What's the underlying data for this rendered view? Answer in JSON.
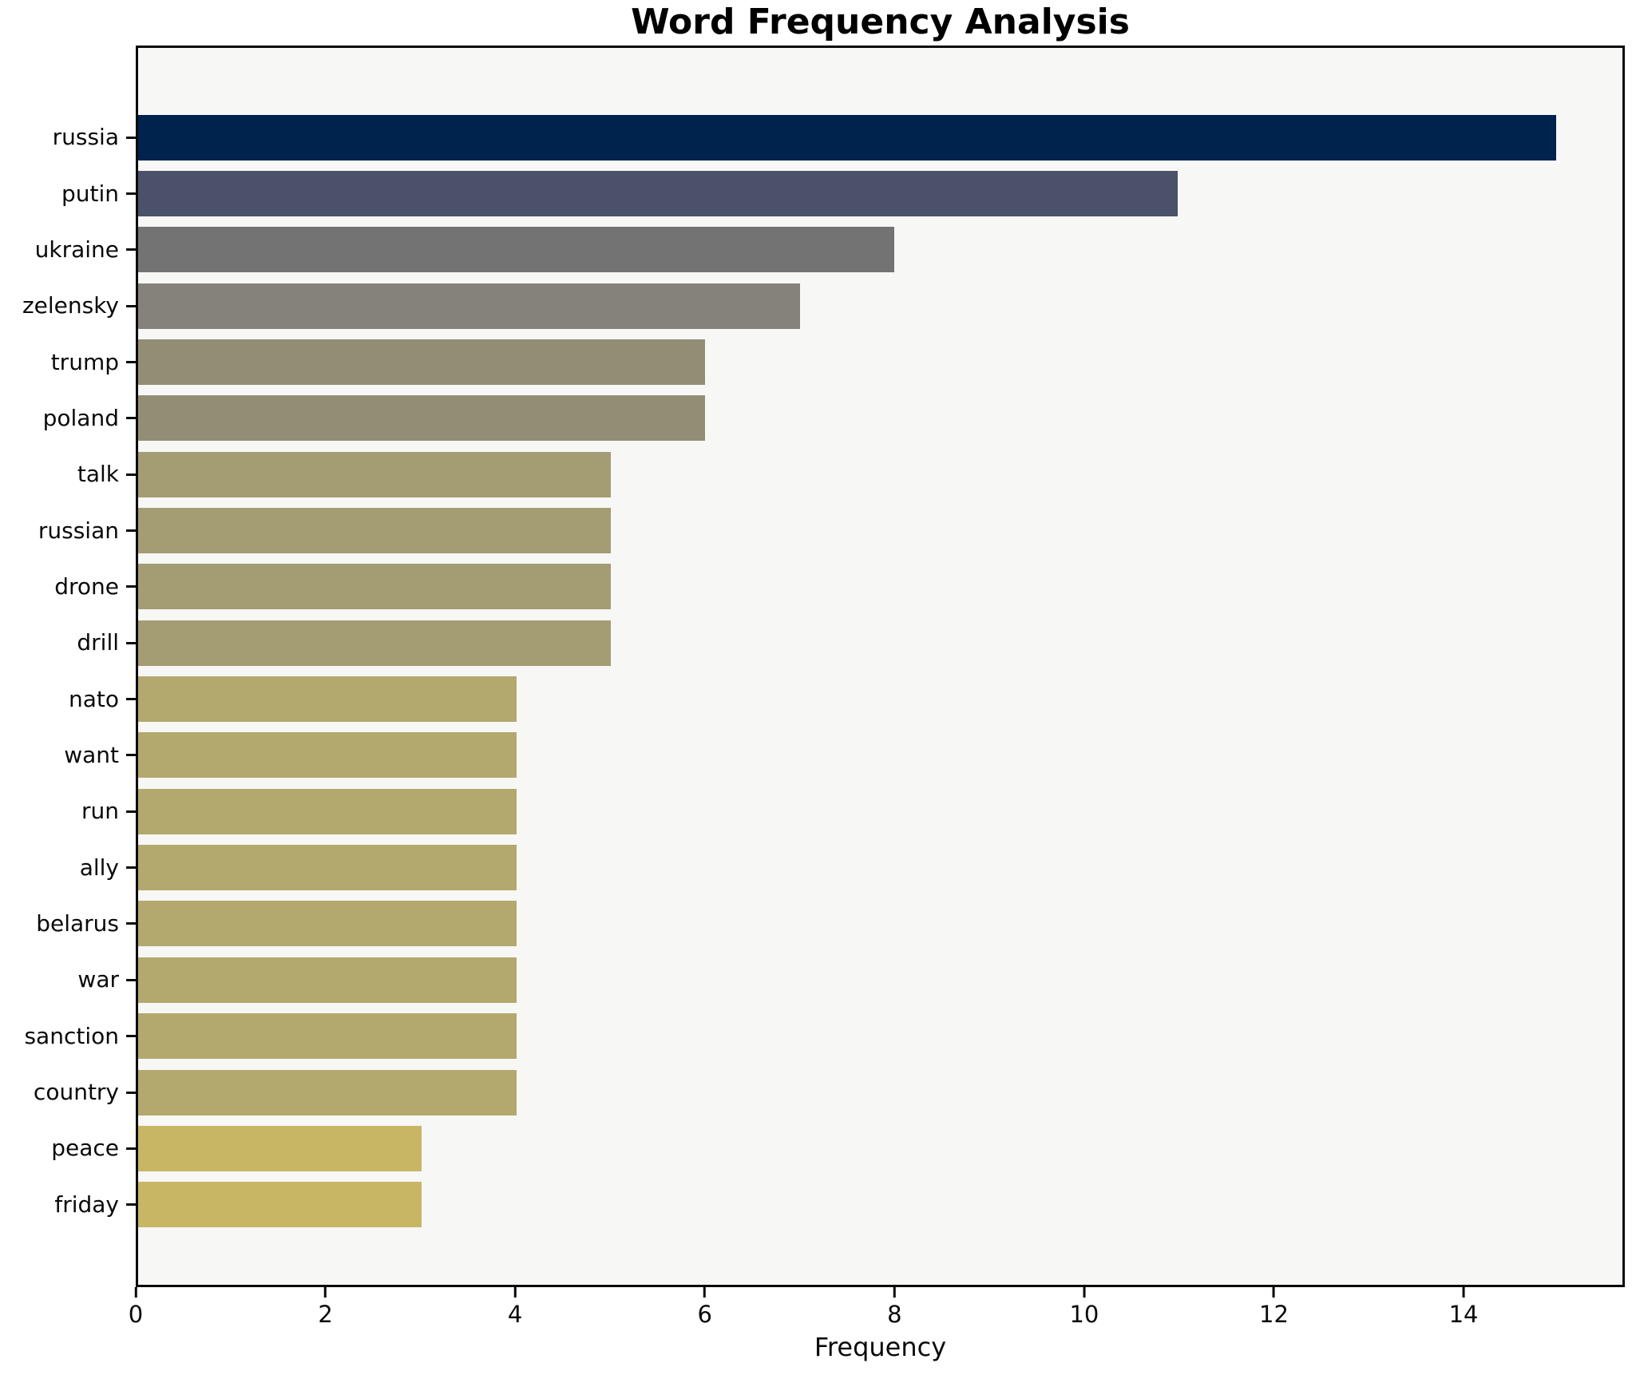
{
  "chart_data": {
    "type": "bar",
    "orientation": "horizontal",
    "title": "Word Frequency Analysis",
    "xlabel": "Frequency",
    "ylabel": "",
    "categories": [
      "russia",
      "putin",
      "ukraine",
      "zelensky",
      "trump",
      "poland",
      "talk",
      "russian",
      "drone",
      "drill",
      "nato",
      "want",
      "run",
      "ally",
      "belarus",
      "war",
      "sanction",
      "country",
      "peace",
      "friday"
    ],
    "values": [
      15,
      11,
      8,
      7,
      6,
      6,
      5,
      5,
      5,
      5,
      4,
      4,
      4,
      4,
      4,
      4,
      4,
      4,
      3,
      3
    ],
    "bar_colors": [
      "#00234d",
      "#4a5168",
      "#737373",
      "#84827b",
      "#928e75",
      "#928e75",
      "#a49c72",
      "#a49c72",
      "#a49c72",
      "#a49c72",
      "#b3a86d",
      "#b3a86d",
      "#b3a86d",
      "#b3a86d",
      "#b3a86d",
      "#b3a86d",
      "#b3a86d",
      "#b3a86d",
      "#c8b664",
      "#c8b664"
    ],
    "xticks": [
      0,
      2,
      4,
      6,
      8,
      10,
      12,
      14
    ],
    "xlim": [
      0,
      15.7
    ],
    "grid": false,
    "legend": null,
    "plot_background": "#f7f7f6",
    "spine_color": "#0a0a0a"
  }
}
